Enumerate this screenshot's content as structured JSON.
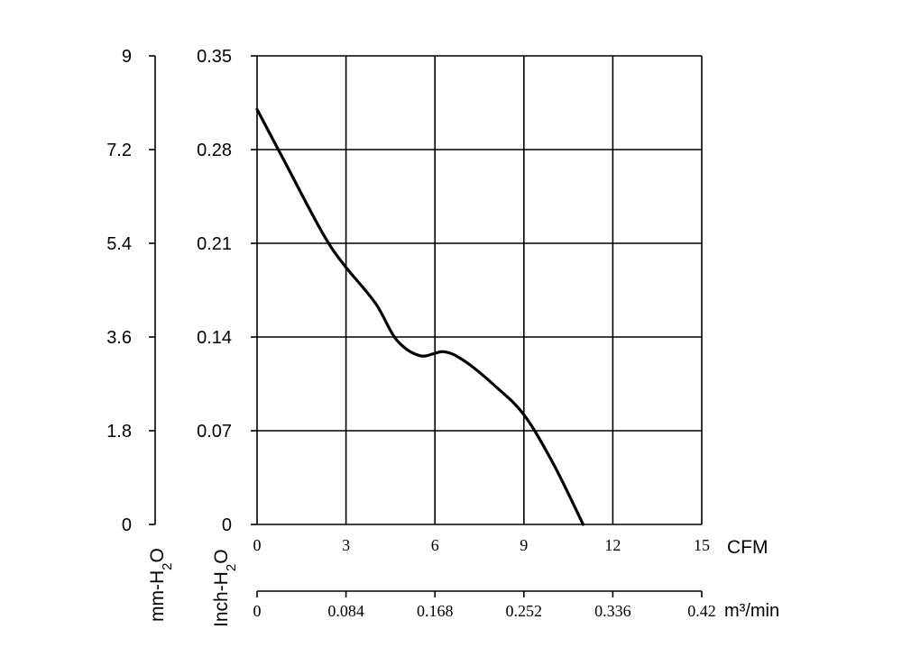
{
  "chart_data": {
    "type": "line",
    "series": [
      {
        "x": [
          0,
          1,
          2,
          2.5,
          3,
          4,
          4.7,
          5.5,
          6.3,
          7,
          8,
          9,
          10,
          11
        ],
        "y": [
          0.31,
          0.268,
          0.226,
          0.207,
          0.192,
          0.165,
          0.138,
          0.126,
          0.129,
          0.122,
          0.104,
          0.082,
          0.045,
          0.0
        ]
      }
    ],
    "x_axis": {
      "unit": "CFM",
      "range": [
        0,
        15
      ],
      "ticks": [
        "0",
        "3",
        "6",
        "9",
        "12",
        "15"
      ]
    },
    "x2_axis": {
      "unit": "m³/min",
      "ticks": [
        "0",
        "0.084",
        "0.168",
        "0.252",
        "0.336",
        "0.42"
      ]
    },
    "y_axis": {
      "label": "Inch-H2O",
      "range": [
        0,
        0.35
      ],
      "ticks": [
        "0",
        "0.07",
        "0.14",
        "0.21",
        "0.28",
        "0.35"
      ]
    },
    "y2_axis": {
      "label": "mm-H2O",
      "ticks": [
        "0",
        "1.8",
        "3.6",
        "5.4",
        "7.2",
        "9"
      ]
    },
    "grid": true,
    "colors": {
      "curve": "#000000",
      "grid": "#000000"
    }
  }
}
